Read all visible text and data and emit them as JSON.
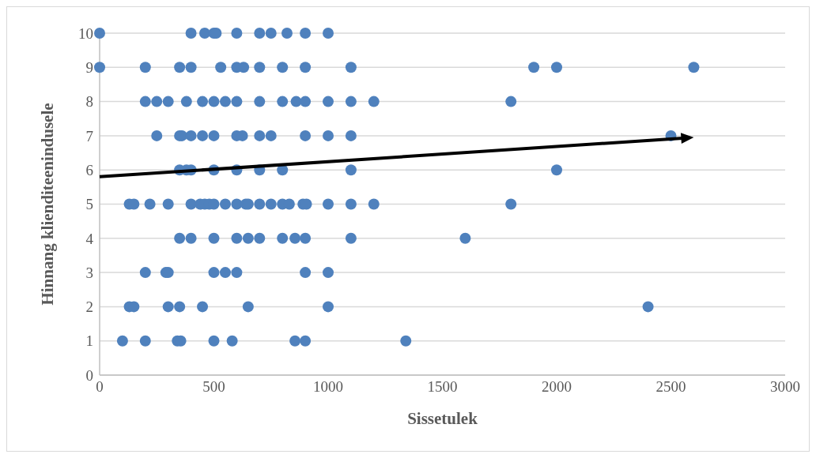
{
  "chart_data": {
    "type": "scatter",
    "xlabel": "Sissetulek",
    "ylabel": "Hinnang klienditeenindusele",
    "xlim": [
      0,
      3000
    ],
    "xticks": [
      0,
      500,
      1000,
      1500,
      2000,
      2500,
      3000
    ],
    "ylim": [
      0,
      10
    ],
    "yticks": [
      0,
      1,
      2,
      3,
      4,
      5,
      6,
      7,
      8,
      9,
      10
    ],
    "grid": "y",
    "marker": "circle",
    "series": [
      {
        "color": "#4f81bd",
        "x": [
          0,
          400,
          460,
          500,
          510,
          600,
          700,
          750,
          820,
          900,
          1000,
          0,
          200,
          350,
          400,
          530,
          600,
          630,
          700,
          800,
          900,
          1100,
          1900,
          2000,
          2600,
          200,
          250,
          300,
          380,
          450,
          500,
          550,
          600,
          700,
          800,
          860,
          900,
          1000,
          1100,
          1200,
          1800,
          250,
          350,
          360,
          400,
          450,
          500,
          600,
          625,
          700,
          750,
          900,
          1000,
          1100,
          2500,
          350,
          380,
          400,
          500,
          600,
          700,
          800,
          1100,
          2000,
          130,
          150,
          220,
          300,
          400,
          440,
          460,
          480,
          500,
          550,
          600,
          640,
          650,
          700,
          750,
          800,
          830,
          890,
          905,
          1000,
          1100,
          1200,
          1800,
          350,
          400,
          500,
          600,
          650,
          700,
          800,
          855,
          900,
          1100,
          1600,
          200,
          290,
          300,
          500,
          550,
          600,
          900,
          1000,
          130,
          150,
          300,
          350,
          450,
          650,
          1000,
          2400,
          100,
          200,
          340,
          355,
          500,
          580,
          855,
          900,
          1340
        ],
        "values": [
          10,
          10,
          10,
          10,
          10,
          10,
          10,
          10,
          10,
          10,
          10,
          9,
          9,
          9,
          9,
          9,
          9,
          9,
          9,
          9,
          9,
          9,
          9,
          9,
          9,
          8,
          8,
          8,
          8,
          8,
          8,
          8,
          8,
          8,
          8,
          8,
          8,
          8,
          8,
          8,
          8,
          7,
          7,
          7,
          7,
          7,
          7,
          7,
          7,
          7,
          7,
          7,
          7,
          7,
          7,
          6,
          6,
          6,
          6,
          6,
          6,
          6,
          6,
          6,
          5,
          5,
          5,
          5,
          5,
          5,
          5,
          5,
          5,
          5,
          5,
          5,
          5,
          5,
          5,
          5,
          5,
          5,
          5,
          5,
          5,
          5,
          5,
          4,
          4,
          4,
          4,
          4,
          4,
          4,
          4,
          4,
          4,
          4,
          3,
          3,
          3,
          3,
          3,
          3,
          3,
          3,
          2,
          2,
          2,
          2,
          2,
          2,
          2,
          2,
          1,
          1,
          1,
          1,
          1,
          1,
          1,
          1,
          1
        ]
      }
    ]
  }
}
